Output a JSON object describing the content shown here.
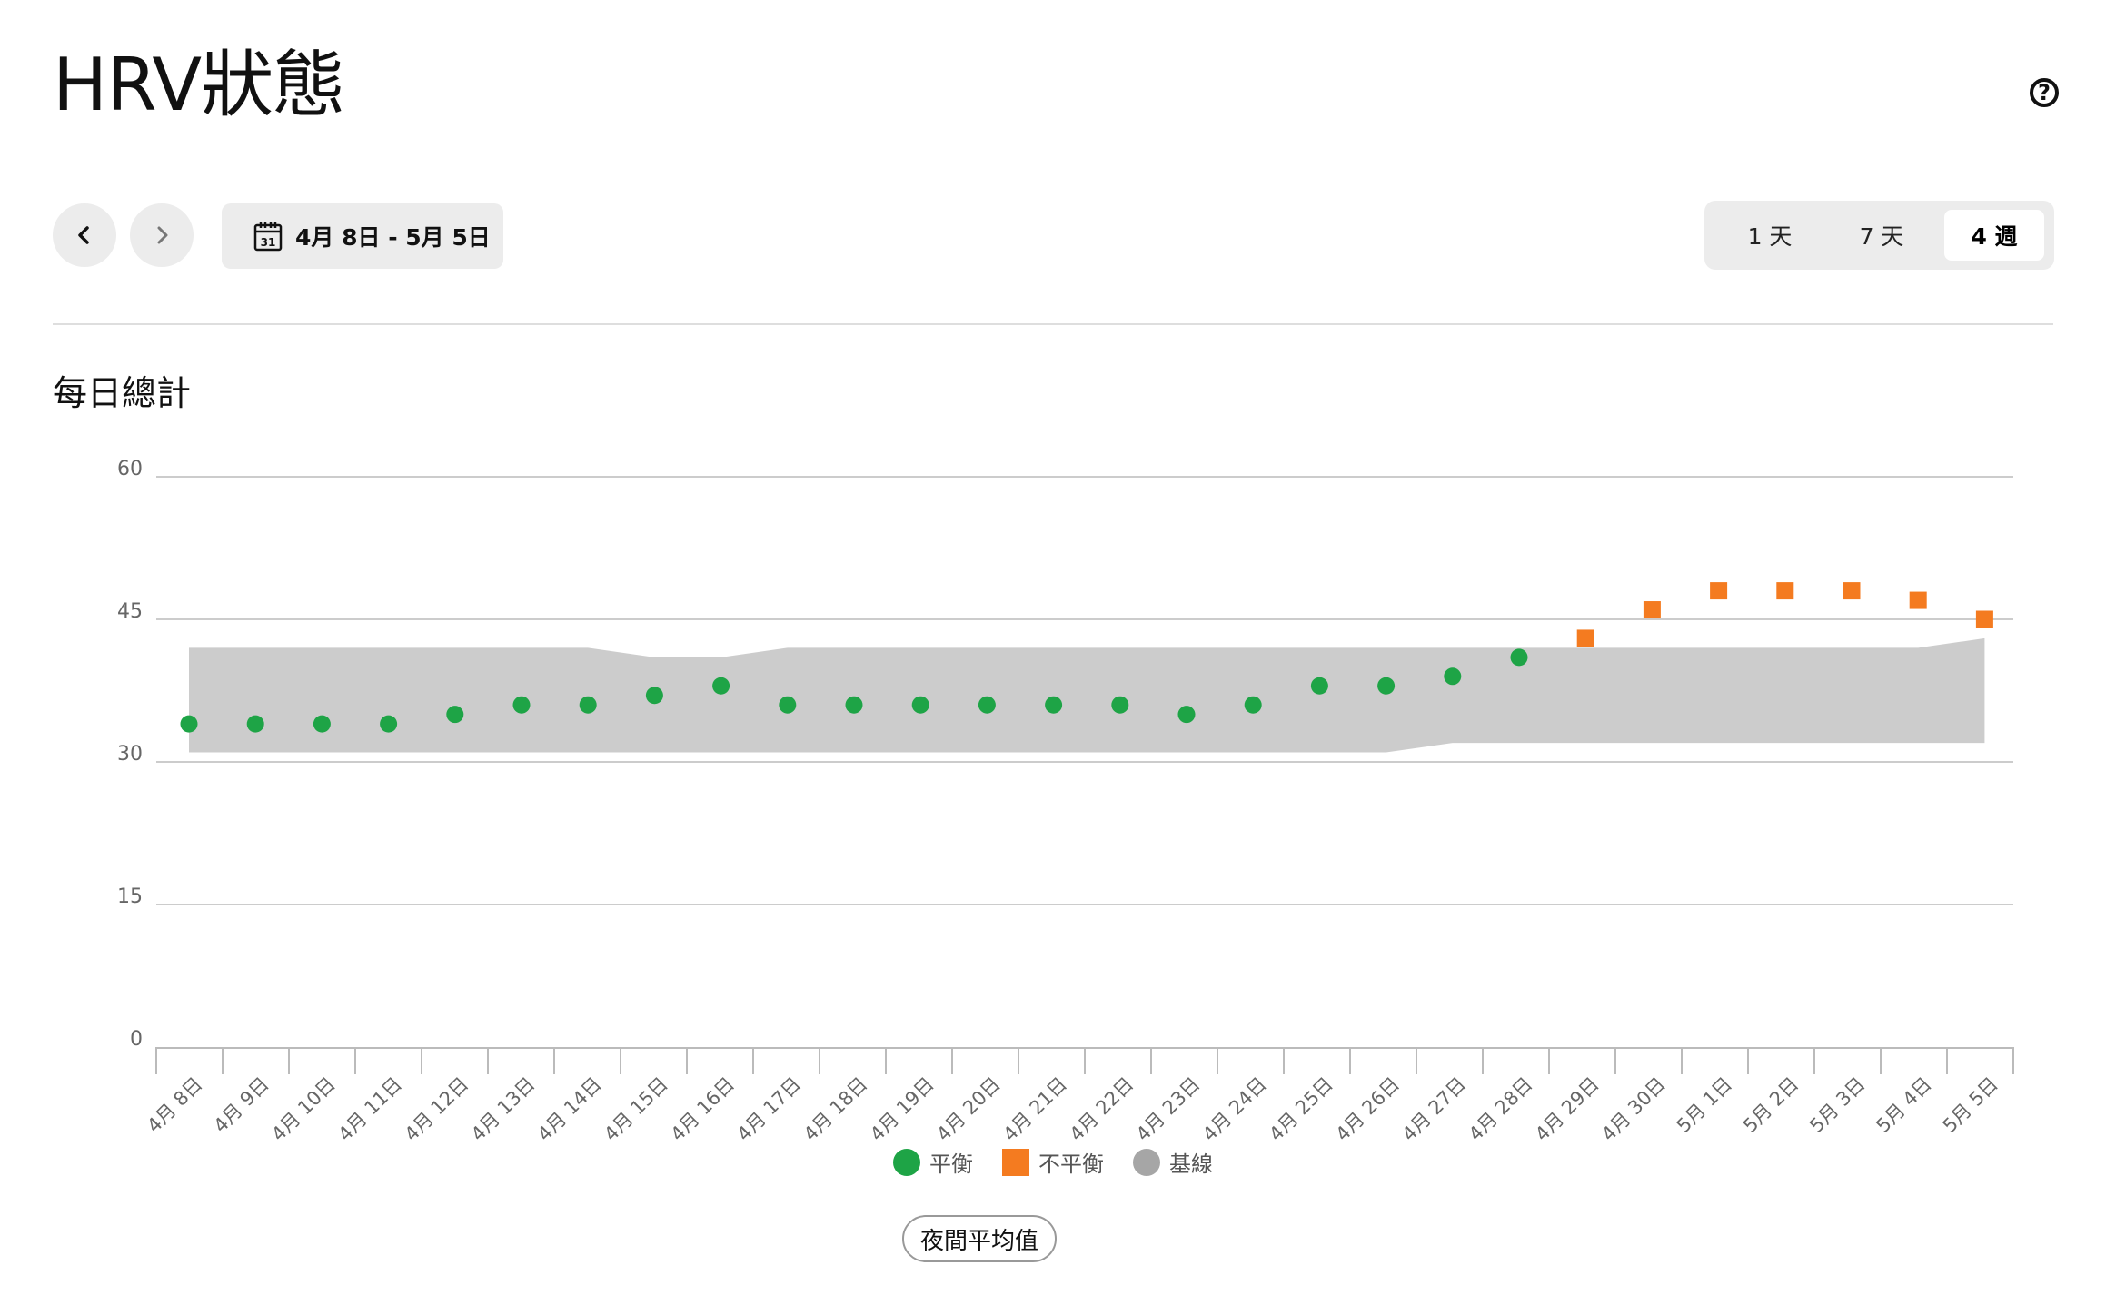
{
  "header": {
    "title": "HRV狀態",
    "help_icon": "question-circle-icon",
    "help_glyph": "?"
  },
  "toolbar": {
    "prev_icon": "chevron-left-icon",
    "next_icon": "chevron-right-icon",
    "calendar_icon": "calendar-icon",
    "calendar_day": "31",
    "date_range": "4月 8日 - 5月 5日",
    "ranges": [
      {
        "label": "1 天",
        "selected": false
      },
      {
        "label": "7 天",
        "selected": false
      },
      {
        "label": "4 週",
        "selected": true
      }
    ]
  },
  "section": {
    "title": "每日總計"
  },
  "colors": {
    "balanced": "#1ea446",
    "unbalanced": "#f47b20",
    "baseline_band": "#cccccc",
    "baseline_legend": "#a6a6a6",
    "grid": "#cccccc",
    "axis_text": "#666666"
  },
  "chart_data": {
    "type": "scatter",
    "title": "",
    "xlabel": "",
    "ylabel": "",
    "ylim": [
      0,
      60
    ],
    "yticks": [
      0,
      15,
      30,
      45,
      60
    ],
    "grid": true,
    "legend_position": "bottom",
    "categories": [
      "4月 8日",
      "4月 9日",
      "4月 10日",
      "4月 11日",
      "4月 12日",
      "4月 13日",
      "4月 14日",
      "4月 15日",
      "4月 16日",
      "4月 17日",
      "4月 18日",
      "4月 19日",
      "4月 20日",
      "4月 21日",
      "4月 22日",
      "4月 23日",
      "4月 24日",
      "4月 25日",
      "4月 26日",
      "4月 27日",
      "4月 28日",
      "4月 29日",
      "4月 30日",
      "5月 1日",
      "5月 2日",
      "5月 3日",
      "5月 4日",
      "5月 5日"
    ],
    "values": [
      34,
      34,
      34,
      34,
      35,
      36,
      36,
      37,
      38,
      36,
      36,
      36,
      36,
      36,
      36,
      35,
      36,
      38,
      38,
      39,
      41,
      43,
      46,
      48,
      48,
      48,
      47,
      45
    ],
    "status": [
      "balanced",
      "balanced",
      "balanced",
      "balanced",
      "balanced",
      "balanced",
      "balanced",
      "balanced",
      "balanced",
      "balanced",
      "balanced",
      "balanced",
      "balanced",
      "balanced",
      "balanced",
      "balanced",
      "balanced",
      "balanced",
      "balanced",
      "balanced",
      "balanced",
      "unbalanced",
      "unbalanced",
      "unbalanced",
      "unbalanced",
      "unbalanced",
      "unbalanced",
      "unbalanced"
    ],
    "baseline_low": [
      31,
      31,
      31,
      31,
      31,
      31,
      31,
      31,
      31,
      31,
      31,
      31,
      31,
      31,
      31,
      31,
      31,
      31,
      31,
      32,
      32,
      32,
      32,
      32,
      32,
      32,
      32,
      32
    ],
    "baseline_high": [
      42,
      42,
      42,
      42,
      42,
      42,
      42,
      41,
      41,
      42,
      42,
      42,
      42,
      42,
      42,
      42,
      42,
      42,
      42,
      42,
      42,
      42,
      42,
      42,
      42,
      42,
      42,
      43
    ],
    "legend": [
      {
        "label": "平衡",
        "key": "balanced",
        "shape": "circle"
      },
      {
        "label": "不平衡",
        "key": "unbalanced",
        "shape": "square"
      },
      {
        "label": "基線",
        "key": "baseline_legend",
        "shape": "circle"
      }
    ]
  },
  "footer": {
    "metric_label": "夜間平均值"
  }
}
